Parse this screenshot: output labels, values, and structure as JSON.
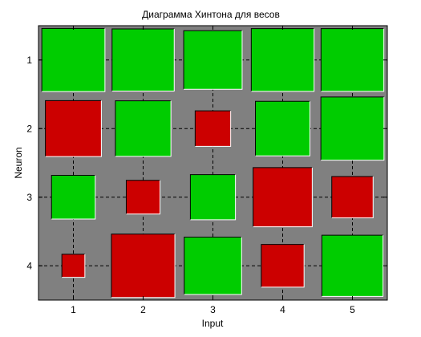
{
  "chart_data": {
    "type": "heatmap",
    "style": "hinton",
    "title": "Диаграмма Хинтона для весов",
    "xlabel": "Input",
    "ylabel": "Neuron",
    "x_ticks": [
      "1",
      "2",
      "3",
      "4",
      "5"
    ],
    "y_ticks": [
      "1",
      "2",
      "3",
      "4"
    ],
    "grid": true,
    "background_color": "#808080",
    "positive_color": "#00cc00",
    "negative_color": "#cc0000",
    "max_abs_value": 1.0,
    "weights": [
      [
        0.98,
        0.95,
        0.84,
        0.97,
        0.97
      ],
      [
        -0.77,
        0.76,
        -0.31,
        0.73,
        0.98
      ],
      [
        0.47,
        -0.28,
        0.5,
        -0.86,
        -0.42
      ],
      [
        -0.13,
        -0.99,
        0.81,
        -0.45,
        0.92
      ]
    ]
  }
}
